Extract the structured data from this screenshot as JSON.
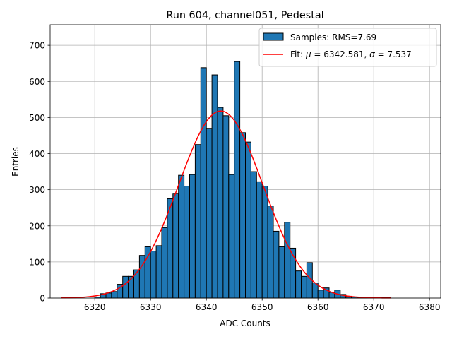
{
  "chart_data": {
    "type": "bar",
    "title": "Run 604, channel051, Pedestal",
    "xlabel": "ADC Counts",
    "ylabel": "Entries",
    "xlim": [
      6312,
      6382
    ],
    "ylim": [
      0,
      757
    ],
    "grid": true,
    "legend_position": "top-right",
    "x_ticks": [
      {
        "value": 6320,
        "label": "6320"
      },
      {
        "value": 6330,
        "label": "6330"
      },
      {
        "value": 6340,
        "label": "6340"
      },
      {
        "value": 6350,
        "label": "6350"
      },
      {
        "value": 6360,
        "label": "6360"
      },
      {
        "value": 6370,
        "label": "6370"
      },
      {
        "value": 6380,
        "label": "6380"
      }
    ],
    "y_ticks": [
      {
        "value": 0,
        "label": "0"
      },
      {
        "value": 100,
        "label": "100"
      },
      {
        "value": 200,
        "label": "200"
      },
      {
        "value": 300,
        "label": "300"
      },
      {
        "value": 400,
        "label": "400"
      },
      {
        "value": 500,
        "label": "500"
      },
      {
        "value": 600,
        "label": "600"
      },
      {
        "value": 700,
        "label": "700"
      }
    ],
    "histogram": {
      "name": "Samples: RMS=7.69",
      "color": "#1f77b4",
      "edgecolor": "#000000",
      "bin_width": 1,
      "bin_starts": [
        6320,
        6321,
        6322,
        6323,
        6324,
        6325,
        6326,
        6327,
        6328,
        6329,
        6330,
        6331,
        6332,
        6333,
        6334,
        6335,
        6336,
        6337,
        6338,
        6339,
        6340,
        6341,
        6342,
        6343,
        6344,
        6345,
        6346,
        6347,
        6348,
        6349,
        6350,
        6351,
        6352,
        6353,
        6354,
        6355,
        6356,
        6357,
        6358,
        6359,
        6360,
        6361,
        6362,
        6363,
        6364,
        6365,
        6366,
        6367,
        6368,
        6369,
        6370,
        6371,
        6372,
        6373,
        6374,
        6375,
        6376,
        6377,
        6378,
        6379
      ],
      "counts": [
        3,
        12,
        14,
        18,
        38,
        60,
        60,
        78,
        118,
        142,
        130,
        145,
        195,
        275,
        290,
        340,
        310,
        342,
        425,
        638,
        470,
        618,
        528,
        505,
        342,
        655,
        458,
        432,
        350,
        322,
        310,
        255,
        185,
        142,
        210,
        138,
        75,
        60,
        98,
        42,
        22,
        28,
        16,
        22,
        10,
        5,
        3,
        2,
        1,
        1,
        1,
        1,
        1,
        0,
        0,
        0,
        0,
        0,
        0,
        0
      ]
    },
    "fit": {
      "name": "Fit: μ = 6342.581, σ = 7.537",
      "label_segments": [
        {
          "text": "Fit: ",
          "italic": false
        },
        {
          "text": "μ",
          "italic": true
        },
        {
          "text": " = 6342.581, ",
          "italic": false
        },
        {
          "text": "σ",
          "italic": true
        },
        {
          "text": " = 7.537",
          "italic": false
        }
      ],
      "color": "#ff0000",
      "mu": 6342.581,
      "sigma": 7.537,
      "amplitude": 518,
      "x_range": [
        6314,
        6373
      ]
    }
  }
}
